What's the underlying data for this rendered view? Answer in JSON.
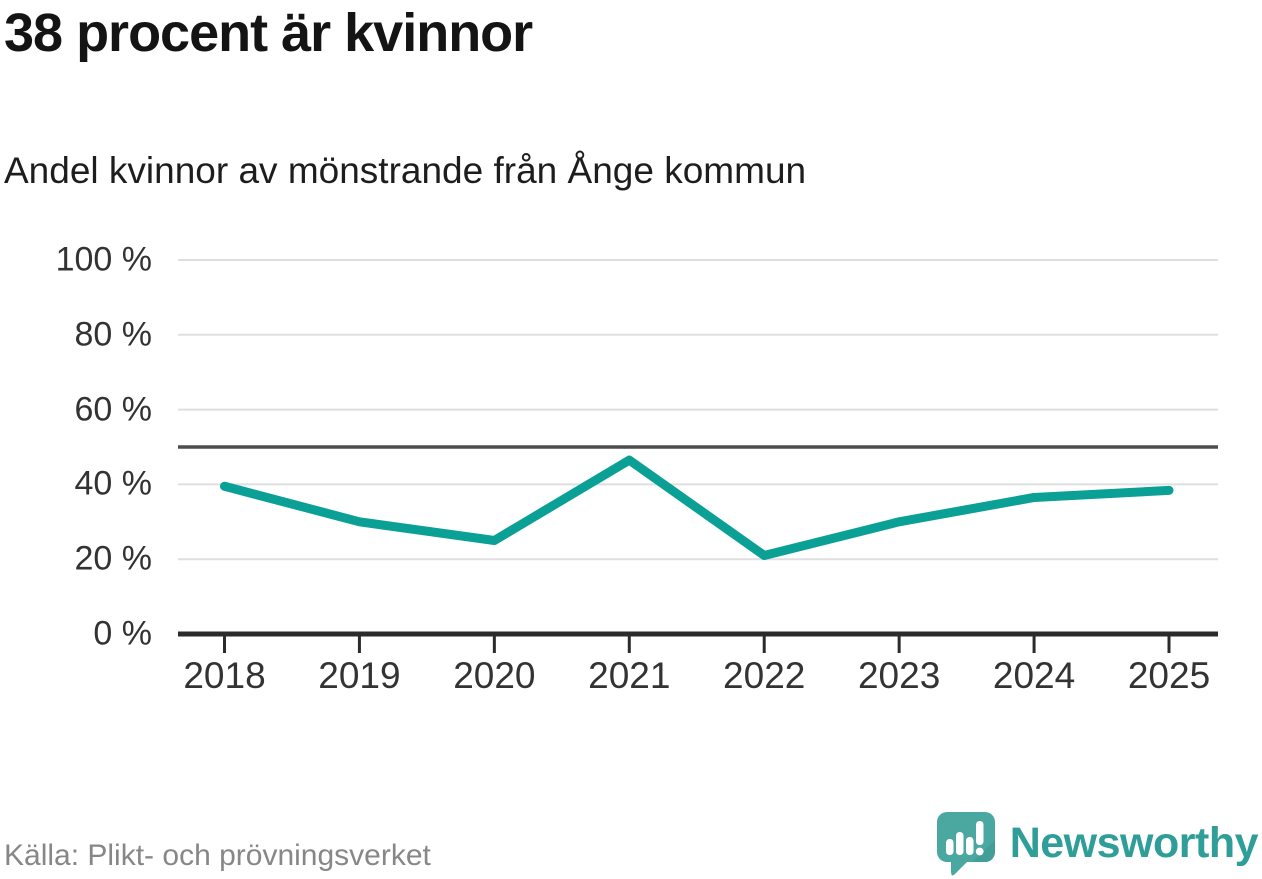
{
  "title": "38 procent är kvinnor",
  "subtitle": "Andel kvinnor av mönstrande från Ånge kommun",
  "source": "Källa: Plikt- och prövningsverket",
  "brand": {
    "name": "Newsworthy",
    "logo_icon": "newsworthy-speech-bubble-chart-icon"
  },
  "colors": {
    "line": "#0aa096",
    "reference_line": "#4d4d4d",
    "grid": "#dfdfdf",
    "axis": "#2b2b2b",
    "tick_text": "#333333",
    "muted_text": "#878787",
    "brand_mark": "#4ba8a1",
    "brand_mark_shade": "#3d968f",
    "brand_text": "#2f9e98"
  },
  "chart_data": {
    "type": "line",
    "title": "38 procent är kvinnor",
    "subtitle": "Andel kvinnor av mönstrande från Ånge kommun",
    "x": [
      "2018",
      "2019",
      "2020",
      "2021",
      "2022",
      "2023",
      "2024",
      "2025"
    ],
    "series": [
      {
        "name": "Andel kvinnor av mönstrande",
        "color": "#0aa096",
        "values": [
          39.5,
          30,
          25,
          46.5,
          21,
          30,
          36.5,
          38.4
        ]
      }
    ],
    "ylim": [
      0,
      100
    ],
    "y_ticks": [
      100,
      80,
      60,
      40,
      20,
      0
    ],
    "y_tick_labels": [
      "100 %",
      "80 %",
      "60 %",
      "40 %",
      "20 %",
      "0 %"
    ],
    "reference_line_y": 50,
    "grid": "horizontal",
    "legend": "none"
  }
}
